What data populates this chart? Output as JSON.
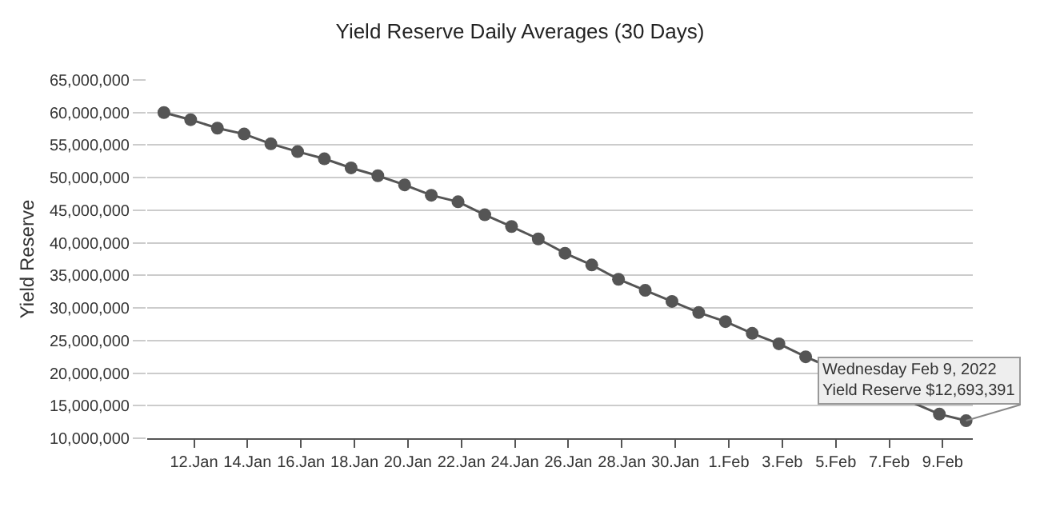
{
  "chart_data": {
    "type": "line",
    "title": "Yield Reserve Daily Averages (30 Days)",
    "ylabel": "Yield Reserve",
    "x": [
      "2022-01-10T21:00",
      "2022-01-11T21:00",
      "2022-01-12T21:00",
      "2022-01-13T21:00",
      "2022-01-14T21:00",
      "2022-01-15T21:00",
      "2022-01-16T21:00",
      "2022-01-17T21:00",
      "2022-01-18T21:00",
      "2022-01-19T21:00",
      "2022-01-20T21:00",
      "2022-01-21T21:00",
      "2022-01-22T21:00",
      "2022-01-23T21:00",
      "2022-01-24T21:00",
      "2022-01-25T21:00",
      "2022-01-26T21:00",
      "2022-01-27T21:00",
      "2022-01-28T21:00",
      "2022-01-29T21:00",
      "2022-01-30T21:00",
      "2022-01-31T21:00",
      "2022-02-01T21:00",
      "2022-02-02T21:00",
      "2022-02-03T21:00",
      "2022-02-04T21:00",
      "2022-02-05T21:00",
      "2022-02-06T21:00",
      "2022-02-07T21:00",
      "2022-02-08T21:00",
      "2022-02-09T21:00"
    ],
    "series": [
      {
        "color": "#555555",
        "values": [
          60000000,
          58900000,
          57600000,
          56700000,
          55200000,
          54000000,
          52900000,
          51500000,
          50300000,
          48900000,
          47300000,
          46300000,
          44300000,
          42500000,
          40600000,
          38400000,
          36600000,
          34400000,
          32700000,
          31000000,
          29300000,
          27900000,
          26100000,
          24500000,
          22500000,
          null,
          null,
          null,
          null,
          13700000,
          12693391
        ]
      }
    ],
    "xlim": [
      "2022-01-10T06:00",
      "2022-02-10T03:00"
    ],
    "xticks": [
      {
        "value": "2022-01-12",
        "label": "12.Jan"
      },
      {
        "value": "2022-01-14",
        "label": "14.Jan"
      },
      {
        "value": "2022-01-16",
        "label": "16.Jan"
      },
      {
        "value": "2022-01-18",
        "label": "18.Jan"
      },
      {
        "value": "2022-01-20",
        "label": "20.Jan"
      },
      {
        "value": "2022-01-22",
        "label": "22.Jan"
      },
      {
        "value": "2022-01-24",
        "label": "24.Jan"
      },
      {
        "value": "2022-01-26",
        "label": "26.Jan"
      },
      {
        "value": "2022-01-28",
        "label": "28.Jan"
      },
      {
        "value": "2022-01-30",
        "label": "30.Jan"
      },
      {
        "value": "2022-02-01",
        "label": "1.Feb"
      },
      {
        "value": "2022-02-03",
        "label": "3.Feb"
      },
      {
        "value": "2022-02-05",
        "label": "5.Feb"
      },
      {
        "value": "2022-02-07",
        "label": "7.Feb"
      },
      {
        "value": "2022-02-09",
        "label": "9.Feb"
      }
    ],
    "ylim": [
      10000000,
      65000000
    ],
    "yticks": [
      {
        "value": 10000000,
        "label": "10,000,000"
      },
      {
        "value": 15000000,
        "label": "15,000,000"
      },
      {
        "value": 20000000,
        "label": "20,000,000"
      },
      {
        "value": 25000000,
        "label": "25,000,000"
      },
      {
        "value": 30000000,
        "label": "30,000,000"
      },
      {
        "value": 35000000,
        "label": "35,000,000"
      },
      {
        "value": 40000000,
        "label": "40,000,000"
      },
      {
        "value": 45000000,
        "label": "45,000,000"
      },
      {
        "value": 50000000,
        "label": "50,000,000"
      },
      {
        "value": 55000000,
        "label": "55,000,000"
      },
      {
        "value": 60000000,
        "label": "60,000,000"
      },
      {
        "value": 65000000,
        "label": "65,000,000"
      }
    ],
    "grid": "y",
    "marker": "circle",
    "line_style": "solid",
    "annotations": [
      {
        "text": "Wednesday Feb 9, 2022\nYield Reserve $12,693,391",
        "x": "2022-02-09T21:00",
        "y": 12693391
      }
    ]
  }
}
